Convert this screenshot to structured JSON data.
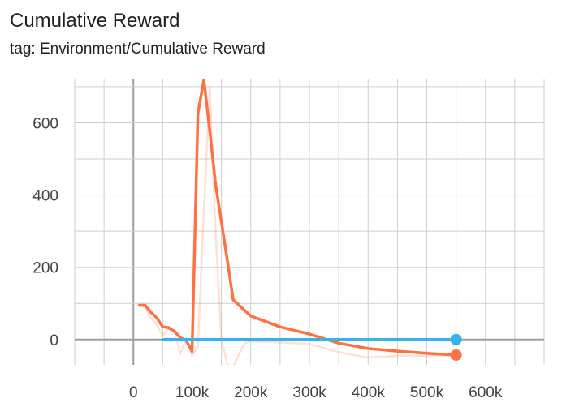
{
  "card": {
    "title": "Cumulative Reward",
    "subtitle": "tag: Environment/Cumulative Reward"
  },
  "chart_data": {
    "type": "line",
    "title": "Cumulative Reward",
    "xlim": [
      -100000,
      700000
    ],
    "ylim": [
      -70,
      720
    ],
    "grid": true,
    "x_ticks": [
      0,
      100000,
      200000,
      300000,
      400000,
      500000,
      600000
    ],
    "x_tick_labels": [
      "0",
      "100k",
      "200k",
      "300k",
      "400k",
      "500k",
      "600k"
    ],
    "y_ticks": [
      0,
      200,
      400,
      600
    ],
    "y_tick_labels": [
      "0",
      "200",
      "400",
      "600"
    ],
    "series": [
      {
        "color": "#ff7043",
        "role": "smoothed",
        "x": [
          10000,
          20000,
          30000,
          40000,
          50000,
          60000,
          70000,
          80000,
          90000,
          100000,
          110000,
          120000,
          130000,
          140000,
          160000,
          170000,
          200000,
          250000,
          300000,
          350000,
          400000,
          450000,
          500000,
          550000
        ],
        "y": [
          95,
          95,
          75,
          60,
          35,
          33,
          23,
          5,
          -3,
          -33,
          625,
          720,
          580,
          430,
          220,
          110,
          65,
          35,
          15,
          -10,
          -25,
          -32,
          -38,
          -43
        ]
      },
      {
        "color": "#ff7043",
        "role": "raw",
        "x": [
          10000,
          20000,
          30000,
          40000,
          50000,
          60000,
          70000,
          80000,
          90000,
          100000,
          110000,
          120000,
          130000,
          140000,
          150000,
          160000,
          170000,
          180000,
          190000,
          200000,
          250000,
          300000,
          350000,
          400000,
          450000,
          500000,
          550000
        ],
        "y": [
          95,
          90,
          60,
          40,
          10,
          30,
          25,
          -40,
          5,
          -45,
          -20,
          350,
          700,
          300,
          0,
          -70,
          -75,
          -40,
          -10,
          -5,
          -8,
          -12,
          -35,
          -50,
          -45,
          -45,
          -43
        ]
      },
      {
        "color": "#34b4eb",
        "role": "smoothed",
        "x": [
          50000,
          100000,
          200000,
          300000,
          400000,
          500000,
          550000
        ],
        "y": [
          0,
          0,
          0,
          0,
          0,
          0,
          0
        ]
      }
    ]
  }
}
